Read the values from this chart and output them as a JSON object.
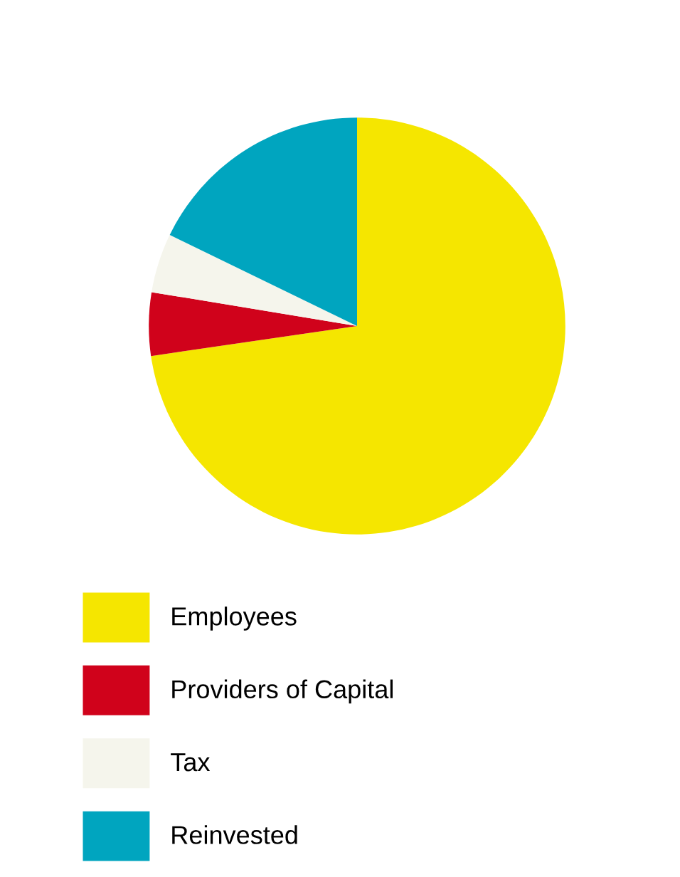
{
  "chart_data": {
    "type": "pie",
    "categories": [
      "Employees",
      "Providers of Capital",
      "Tax",
      "Reinvested"
    ],
    "values": [
      72.7,
      4.9,
      4.6,
      17.8
    ],
    "colors": [
      "#f5e600",
      "#d0021b",
      "#f5f5ec",
      "#00a5bf"
    ],
    "legend": "bottom"
  }
}
